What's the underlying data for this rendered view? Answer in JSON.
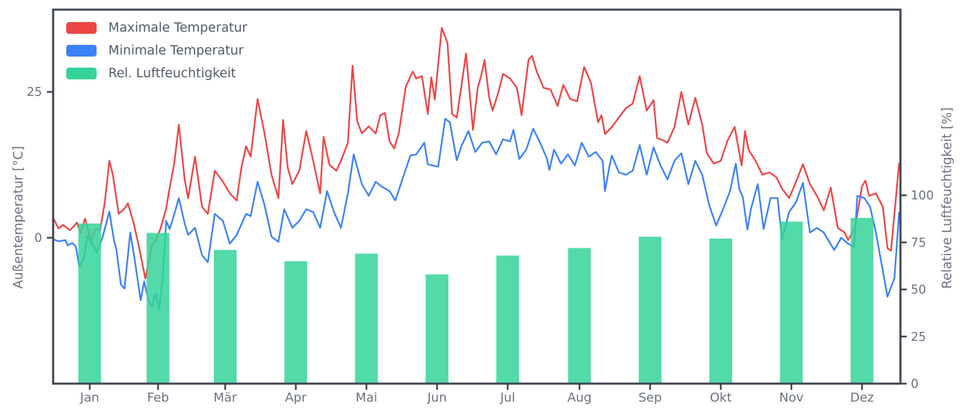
{
  "chart_data": {
    "type": "line+bar",
    "title": "",
    "x_axis": {
      "tick_labels": [
        "Jan",
        "Feb",
        "Mär",
        "Apr",
        "Mai",
        "Jun",
        "Jul",
        "Aug",
        "Sep",
        "Okt",
        "Nov",
        "Dez"
      ],
      "tick_mid_days": [
        15.5,
        45,
        74,
        104.5,
        135,
        165.5,
        196,
        227,
        257.5,
        288,
        318.5,
        349
      ],
      "days_range": [
        0,
        365
      ]
    },
    "left_axis": {
      "label": "Außentemperatur [°C]",
      "ticks": [
        0,
        25
      ],
      "range": [
        -25,
        39
      ],
      "unit": "°C"
    },
    "right_axis": {
      "label": "Relative Luftfeuchtigkeit [%]",
      "ticks": [
        0,
        25,
        50,
        75,
        100
      ],
      "range": [
        0,
        199
      ],
      "unit": "%"
    },
    "legend": [
      {
        "label": "Maximale Temperatur",
        "color": "#ef4444",
        "kind": "line"
      },
      {
        "label": "Minimale Temperatur",
        "color": "#3b82f6",
        "kind": "line"
      },
      {
        "label": "Rel. Luftfeuchtigkeit",
        "color": "#34d399",
        "kind": "bar"
      }
    ],
    "humidity_bars": {
      "name": "Rel. Luftfeuchtigkeit",
      "color": "#34d399",
      "opacity": 0.85,
      "axis": "right",
      "unit": "%",
      "months": [
        "Jan",
        "Feb",
        "Mär",
        "Apr",
        "Mai",
        "Jun",
        "Jul",
        "Aug",
        "Sep",
        "Okt",
        "Nov",
        "Dez"
      ],
      "values_percent": [
        85,
        80,
        71,
        65,
        69,
        58,
        68,
        72,
        78,
        77,
        86,
        88
      ]
    },
    "series": [
      {
        "name": "Maximale Temperatur",
        "color": "#ef4444",
        "axis": "left",
        "unit": "°C",
        "points": [
          [
            0,
            3.2
          ],
          [
            2,
            1.6
          ],
          [
            4,
            2.2
          ],
          [
            7,
            1.3
          ],
          [
            10,
            2.6
          ],
          [
            11.5,
            0.8
          ],
          [
            13.5,
            3.3
          ],
          [
            16,
            -0.5
          ],
          [
            18,
            1.5
          ],
          [
            20,
            1.3
          ],
          [
            22,
            6
          ],
          [
            24,
            13.2
          ],
          [
            25.5,
            10.8
          ],
          [
            28,
            4.1
          ],
          [
            30.5,
            5
          ],
          [
            32,
            5.9
          ],
          [
            34.5,
            2.5
          ],
          [
            37,
            -2
          ],
          [
            39.5,
            -7
          ],
          [
            42.5,
            -1.2
          ],
          [
            44,
            -0.5
          ],
          [
            46,
            1.5
          ],
          [
            48.5,
            5
          ],
          [
            50,
            8.5
          ],
          [
            52,
            12.7
          ],
          [
            54,
            19.4
          ],
          [
            56.5,
            10
          ],
          [
            58,
            6.8
          ],
          [
            61,
            13.9
          ],
          [
            64,
            5.3
          ],
          [
            66.5,
            4.1
          ],
          [
            69.5,
            11.5
          ],
          [
            73,
            9.6
          ],
          [
            76,
            7.6
          ],
          [
            79,
            6.4
          ],
          [
            81,
            12
          ],
          [
            83,
            15.7
          ],
          [
            85,
            13.9
          ],
          [
            88,
            23.8
          ],
          [
            91,
            17.9
          ],
          [
            94,
            10.8
          ],
          [
            97,
            6.8
          ],
          [
            99,
            20.2
          ],
          [
            101,
            12
          ],
          [
            103,
            9.2
          ],
          [
            106,
            11.5
          ],
          [
            109,
            18.3
          ],
          [
            112,
            13.2
          ],
          [
            115,
            7.6
          ],
          [
            116.5,
            17.3
          ],
          [
            119,
            12.5
          ],
          [
            122,
            11.5
          ],
          [
            124,
            13.2
          ],
          [
            127,
            16.3
          ],
          [
            129,
            29.5
          ],
          [
            131,
            20
          ],
          [
            133,
            17.9
          ],
          [
            136,
            19.1
          ],
          [
            139,
            17.9
          ],
          [
            141,
            21
          ],
          [
            143,
            21.4
          ],
          [
            145,
            16.5
          ],
          [
            147,
            15.3
          ],
          [
            149,
            18
          ],
          [
            152,
            25.9
          ],
          [
            155,
            28.5
          ],
          [
            156.5,
            27.3
          ],
          [
            159,
            27.7
          ],
          [
            161.5,
            21.2
          ],
          [
            163,
            27.5
          ],
          [
            164.5,
            23.7
          ],
          [
            167.5,
            36
          ],
          [
            170,
            33.4
          ],
          [
            172,
            21.2
          ],
          [
            174,
            20.6
          ],
          [
            176,
            26
          ],
          [
            178,
            31.6
          ],
          [
            181,
            18.5
          ],
          [
            183,
            25.6
          ],
          [
            185,
            28.5
          ],
          [
            186,
            30.5
          ],
          [
            188,
            24
          ],
          [
            189.5,
            21.8
          ],
          [
            192,
            25
          ],
          [
            194,
            28.1
          ],
          [
            197,
            27.3
          ],
          [
            200,
            25.7
          ],
          [
            202,
            21
          ],
          [
            205,
            30.5
          ],
          [
            206.5,
            31.2
          ],
          [
            208.5,
            28.5
          ],
          [
            211.5,
            25.7
          ],
          [
            214.5,
            25.4
          ],
          [
            217.5,
            22.6
          ],
          [
            220,
            26.2
          ],
          [
            223,
            23.8
          ],
          [
            226,
            23.4
          ],
          [
            229,
            29.3
          ],
          [
            232,
            26.5
          ],
          [
            235,
            19.8
          ],
          [
            236.5,
            21
          ],
          [
            238,
            17.8
          ],
          [
            241,
            19
          ],
          [
            244,
            20.6
          ],
          [
            247,
            22.2
          ],
          [
            250,
            23
          ],
          [
            253,
            27.7
          ],
          [
            256,
            21.8
          ],
          [
            259,
            23.6
          ],
          [
            260.5,
            17.1
          ],
          [
            262,
            16.9
          ],
          [
            265,
            16.3
          ],
          [
            268,
            19
          ],
          [
            271,
            25
          ],
          [
            274,
            19.4
          ],
          [
            277,
            24
          ],
          [
            280,
            19.4
          ],
          [
            282,
            14.5
          ],
          [
            285,
            12.7
          ],
          [
            288,
            13.2
          ],
          [
            291,
            16.7
          ],
          [
            294,
            19
          ],
          [
            297,
            12.4
          ],
          [
            298.5,
            18.3
          ],
          [
            300,
            15.1
          ],
          [
            303,
            13.2
          ],
          [
            306,
            10.8
          ],
          [
            309,
            11.2
          ],
          [
            312,
            10.4
          ],
          [
            314.5,
            8.4
          ],
          [
            317.5,
            6.8
          ],
          [
            320.5,
            9.6
          ],
          [
            323.5,
            12.6
          ],
          [
            326.5,
            9.2
          ],
          [
            329.5,
            7.2
          ],
          [
            332.5,
            4.7
          ],
          [
            335.5,
            8.6
          ],
          [
            338.5,
            1.7
          ],
          [
            341.5,
            0.9
          ],
          [
            343,
            -0.4
          ],
          [
            346,
            1.7
          ],
          [
            349,
            8.8
          ],
          [
            350.5,
            9.8
          ],
          [
            352,
            7.2
          ],
          [
            355,
            7.6
          ],
          [
            358,
            5.3
          ],
          [
            360,
            -1.8
          ],
          [
            361.5,
            -2.2
          ],
          [
            363,
            4.1
          ],
          [
            365,
            12.7
          ]
        ]
      },
      {
        "name": "Minimale Temperatur",
        "color": "#3b82f6",
        "axis": "left",
        "unit": "°C",
        "points": [
          [
            0,
            -0.3
          ],
          [
            2,
            -0.6
          ],
          [
            5,
            -0.4
          ],
          [
            6,
            -1.3
          ],
          [
            8,
            -0.9
          ],
          [
            9.5,
            -1.5
          ],
          [
            11,
            -5
          ],
          [
            13,
            -3.5
          ],
          [
            14.5,
            0.3
          ],
          [
            16.5,
            -1
          ],
          [
            18.5,
            -2.5
          ],
          [
            21,
            0
          ],
          [
            24,
            4.5
          ],
          [
            26,
            -0.5
          ],
          [
            27,
            -2
          ],
          [
            29,
            -8
          ],
          [
            30.5,
            -8.7
          ],
          [
            33,
            0.9
          ],
          [
            35,
            -4
          ],
          [
            37.5,
            -10.7
          ],
          [
            39,
            -7.5
          ],
          [
            41,
            -10.9
          ],
          [
            42.5,
            -11.7
          ],
          [
            44,
            -9.5
          ],
          [
            45.5,
            -12.3
          ],
          [
            47,
            -7
          ],
          [
            48.5,
            2.9
          ],
          [
            50,
            1.5
          ],
          [
            52,
            4
          ],
          [
            54,
            6.8
          ],
          [
            56.5,
            2.5
          ],
          [
            58,
            0.5
          ],
          [
            61,
            1.7
          ],
          [
            64,
            -3
          ],
          [
            66.5,
            -4.2
          ],
          [
            69.5,
            4.1
          ],
          [
            73,
            2.9
          ],
          [
            76,
            -1
          ],
          [
            79,
            0.5
          ],
          [
            83,
            4.1
          ],
          [
            85,
            3.7
          ],
          [
            88,
            9.6
          ],
          [
            91,
            5.6
          ],
          [
            94,
            0.2
          ],
          [
            97,
            -0.7
          ],
          [
            99.5,
            4.9
          ],
          [
            103,
            1.7
          ],
          [
            106,
            2.9
          ],
          [
            109,
            4.9
          ],
          [
            112,
            4.4
          ],
          [
            115,
            1.7
          ],
          [
            118,
            8
          ],
          [
            121,
            4.4
          ],
          [
            124,
            1.7
          ],
          [
            127,
            7.6
          ],
          [
            129.5,
            14.3
          ],
          [
            133,
            9.2
          ],
          [
            136,
            7.2
          ],
          [
            139,
            9.6
          ],
          [
            141.5,
            8.8
          ],
          [
            145,
            8
          ],
          [
            147.5,
            6.4
          ],
          [
            150.5,
            10
          ],
          [
            154,
            14.1
          ],
          [
            156.5,
            14.3
          ],
          [
            160,
            16.3
          ],
          [
            161.5,
            12.6
          ],
          [
            164.5,
            12.3
          ],
          [
            166,
            12.2
          ],
          [
            169,
            20.4
          ],
          [
            171,
            19.8
          ],
          [
            174,
            13.3
          ],
          [
            176,
            15.7
          ],
          [
            179,
            18.3
          ],
          [
            182,
            14.7
          ],
          [
            185,
            16.3
          ],
          [
            188,
            16.5
          ],
          [
            191,
            14.3
          ],
          [
            194,
            16.9
          ],
          [
            197,
            16.5
          ],
          [
            198.5,
            18.5
          ],
          [
            201,
            13.5
          ],
          [
            204,
            15.1
          ],
          [
            207,
            18.7
          ],
          [
            210,
            16.3
          ],
          [
            213,
            13.5
          ],
          [
            214,
            11.6
          ],
          [
            216,
            15.1
          ],
          [
            219,
            12.7
          ],
          [
            222,
            14.3
          ],
          [
            225,
            12.4
          ],
          [
            228,
            16.3
          ],
          [
            231,
            13.9
          ],
          [
            234,
            14.7
          ],
          [
            237,
            13.2
          ],
          [
            238,
            8
          ],
          [
            240,
            12.4
          ],
          [
            241,
            14.1
          ],
          [
            244,
            11.2
          ],
          [
            247,
            10.8
          ],
          [
            250,
            11.5
          ],
          [
            253,
            15.9
          ],
          [
            256,
            10.8
          ],
          [
            259,
            15.5
          ],
          [
            262,
            12.4
          ],
          [
            265,
            10
          ],
          [
            268,
            13.2
          ],
          [
            271,
            14.5
          ],
          [
            274,
            9.2
          ],
          [
            277,
            13.2
          ],
          [
            280,
            10.8
          ],
          [
            283,
            5.6
          ],
          [
            286,
            2.1
          ],
          [
            289,
            4.9
          ],
          [
            292,
            8
          ],
          [
            294.5,
            12.7
          ],
          [
            296,
            8.4
          ],
          [
            297.5,
            7
          ],
          [
            299.5,
            1.4
          ],
          [
            301,
            4.9
          ],
          [
            304,
            9.2
          ],
          [
            306.5,
            1.5
          ],
          [
            309.5,
            6.8
          ],
          [
            312.5,
            6.8
          ],
          [
            314.5,
            -0.3
          ],
          [
            317.5,
            4.4
          ],
          [
            320.5,
            6.1
          ],
          [
            323.5,
            9.4
          ],
          [
            326.5,
            0.9
          ],
          [
            329.5,
            1.7
          ],
          [
            332.5,
            0.9
          ],
          [
            337,
            -2.1
          ],
          [
            340,
            0
          ],
          [
            343,
            -1
          ],
          [
            345.5,
            -1.6
          ],
          [
            347,
            7.2
          ],
          [
            350,
            6.8
          ],
          [
            352.5,
            5.3
          ],
          [
            355,
            0.9
          ],
          [
            358,
            -5.7
          ],
          [
            360,
            -10.1
          ],
          [
            363,
            -6.9
          ],
          [
            365,
            4.3
          ]
        ]
      }
    ],
    "style": {
      "background": "#ffffff",
      "spine_color": "#3d4451",
      "tick_label_color": "#6b7280",
      "legend_text_color": "#525b69",
      "grid": "off",
      "legend_position": "top-left"
    }
  }
}
